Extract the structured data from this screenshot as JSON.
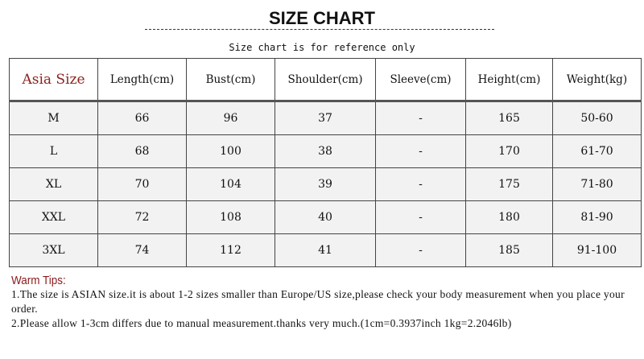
{
  "title": "SIZE CHART",
  "subtitle": "Size chart is for reference only",
  "table": {
    "headers": [
      "Asia Size",
      "Length(cm)",
      "Bust(cm)",
      "Shoulder(cm)",
      "Sleeve(cm)",
      "Height(cm)",
      "Weight(kg)"
    ],
    "rows": [
      [
        "M",
        "66",
        "96",
        "37",
        "-",
        "165",
        "50-60"
      ],
      [
        "L",
        "68",
        "100",
        "38",
        "-",
        "170",
        "61-70"
      ],
      [
        "XL",
        "70",
        "104",
        "39",
        "-",
        "175",
        "71-80"
      ],
      [
        "XXL",
        "72",
        "108",
        "40",
        "-",
        "180",
        "81-90"
      ],
      [
        "3XL",
        "74",
        "112",
        "41",
        "-",
        "185",
        "91-100"
      ]
    ]
  },
  "tips": {
    "heading": "Warm Tips:",
    "lines": [
      "1.The size is ASIAN size.it is about 1-2 sizes smaller than Europe/US size,please check your body measurement when you place your order.",
      "2.Please allow 1-3cm differs due to manual measurement.thanks very much.(1cm=0.3937inch 1kg=2.2046lb)"
    ]
  },
  "colors": {
    "asia_size_header": "#8b2222",
    "tips_heading": "#8b1a1a"
  }
}
